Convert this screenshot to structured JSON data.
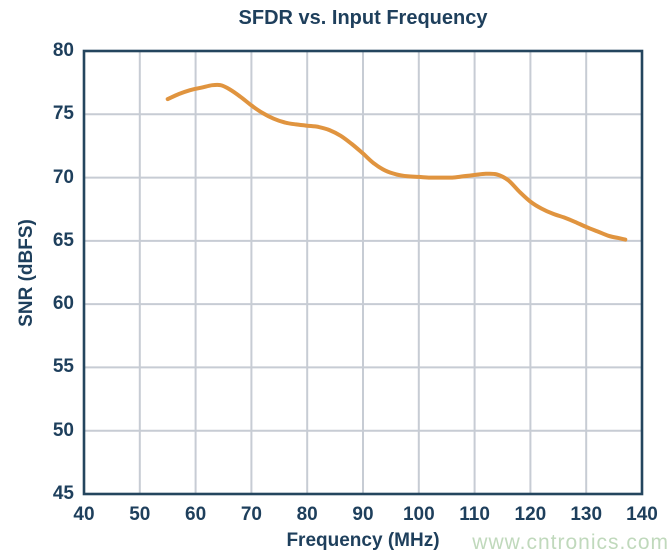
{
  "page": {
    "background": "#ffffff",
    "watermark": "www.cntronics.com",
    "watermark_color": "#c0d9bc"
  },
  "chart_data": {
    "type": "line",
    "title": "SFDR vs. Input Frequency",
    "xlabel": "Frequency (MHz)",
    "ylabel": "SNR (dBFS)",
    "xlim": [
      40,
      140
    ],
    "ylim": [
      45,
      80
    ],
    "x_ticks": [
      40,
      50,
      60,
      70,
      80,
      90,
      100,
      110,
      120,
      130,
      140
    ],
    "y_ticks": [
      45,
      50,
      55,
      60,
      65,
      70,
      75,
      80
    ],
    "grid": true,
    "legend": "none",
    "colors": {
      "line": "#e0943f",
      "axis_border": "#24455e",
      "grid": "#c7ccd4",
      "text": "#1e3f5c"
    },
    "series": [
      {
        "name": "SFDR",
        "points": [
          [
            55,
            76.2
          ],
          [
            57,
            76.6
          ],
          [
            59,
            76.9
          ],
          [
            61,
            77.1
          ],
          [
            63,
            77.3
          ],
          [
            64.5,
            77.3
          ],
          [
            66,
            77.0
          ],
          [
            68,
            76.4
          ],
          [
            70,
            75.7
          ],
          [
            72,
            75.1
          ],
          [
            74,
            74.65
          ],
          [
            76,
            74.35
          ],
          [
            78,
            74.2
          ],
          [
            80,
            74.1
          ],
          [
            82,
            74.0
          ],
          [
            84,
            73.75
          ],
          [
            86,
            73.3
          ],
          [
            88,
            72.65
          ],
          [
            90,
            71.9
          ],
          [
            92,
            71.1
          ],
          [
            94,
            70.55
          ],
          [
            96,
            70.25
          ],
          [
            98,
            70.1
          ],
          [
            100,
            70.05
          ],
          [
            102,
            70.0
          ],
          [
            104,
            70.0
          ],
          [
            106,
            70.0
          ],
          [
            108,
            70.1
          ],
          [
            110,
            70.2
          ],
          [
            112,
            70.3
          ],
          [
            114,
            70.25
          ],
          [
            116,
            69.8
          ],
          [
            118,
            68.9
          ],
          [
            120,
            68.1
          ],
          [
            122,
            67.55
          ],
          [
            124,
            67.15
          ],
          [
            126,
            66.85
          ],
          [
            128,
            66.5
          ],
          [
            130,
            66.1
          ],
          [
            132,
            65.75
          ],
          [
            134,
            65.4
          ],
          [
            136,
            65.2
          ],
          [
            137,
            65.1
          ]
        ]
      }
    ]
  }
}
